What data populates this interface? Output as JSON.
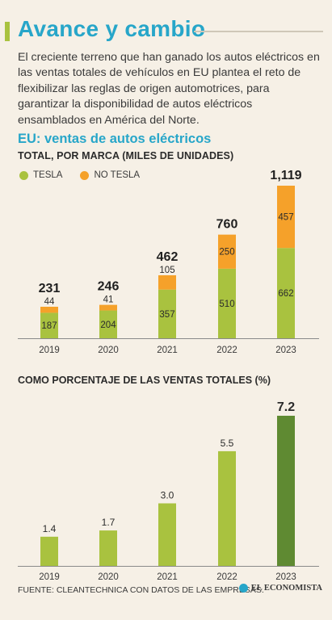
{
  "header": {
    "title": "Avance y cambio",
    "intro": "El creciente terreno que han ganado los autos eléctricos en las ventas totales de vehículos en EU plantea el reto de flexibilizar las reglas de origen automotrices, para garantizar la disponibilidad de autos eléctricos ensamblados en América del Norte.",
    "section_title": "EU: ventas de autos eléctricos"
  },
  "colors": {
    "accent": "#27a6c9",
    "tesla": "#a9c23f",
    "no_tesla": "#f5a12a",
    "highlight_bar": "#5f8a32"
  },
  "chart_data": [
    {
      "type": "bar",
      "stacked": true,
      "title": "TOTAL, POR MARCA (MILES DE UNIDADES)",
      "categories": [
        "2019",
        "2020",
        "2021",
        "2022",
        "2023"
      ],
      "series": [
        {
          "name": "TESLA",
          "values": [
            187,
            204,
            357,
            510,
            662
          ]
        },
        {
          "name": "NO TESLA",
          "values": [
            44,
            41,
            105,
            250,
            457
          ]
        }
      ],
      "totals": [
        "231",
        "246",
        "462",
        "760",
        "1,119"
      ],
      "ylim": [
        0,
        1119
      ],
      "legend": "top-left",
      "grid": false
    },
    {
      "type": "bar",
      "title": "COMO PORCENTAJE DE LAS VENTAS TOTALES (%)",
      "categories": [
        "2019",
        "2020",
        "2021",
        "2022",
        "2023"
      ],
      "values": [
        1.4,
        1.7,
        3.0,
        5.5,
        7.2
      ],
      "labels": [
        "1.4",
        "1.7",
        "3.0",
        "5.5",
        "7.2"
      ],
      "ylim": [
        0,
        7.2
      ],
      "grid": false
    }
  ],
  "footer": {
    "source": "FUENTE: CLEANTECHNICA CON DATOS DE LAS EMPRESAS.",
    "brand": "EL ECONOMISTA"
  }
}
